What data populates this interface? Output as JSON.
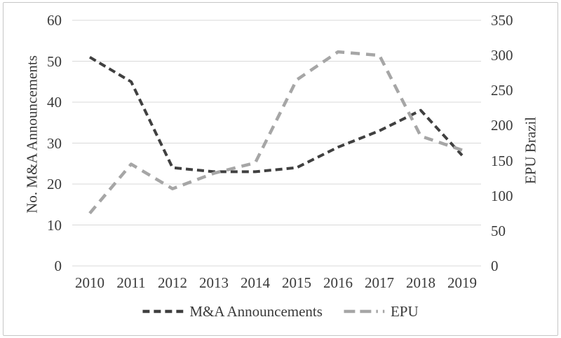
{
  "chart_data": {
    "type": "line",
    "title": "",
    "categories": [
      "2010",
      "2011",
      "2012",
      "2013",
      "2014",
      "2015",
      "2016",
      "2017",
      "2018",
      "2019"
    ],
    "series": [
      {
        "name": "M&A Announcements",
        "axis": "left",
        "color": "#404040",
        "line_style": "short-dash",
        "values": [
          51,
          45,
          24,
          23,
          23,
          24,
          29,
          33,
          38,
          27
        ]
      },
      {
        "name": "EPU",
        "axis": "right",
        "color": "#a6a6a6",
        "line_style": "long-dash-dot",
        "values": [
          75,
          145,
          110,
          132,
          147,
          265,
          305,
          300,
          185,
          165
        ]
      }
    ],
    "left_axis": {
      "label": "No. M&A Announcements",
      "min": 0,
      "max": 60,
      "ticks": [
        0,
        10,
        20,
        30,
        40,
        50,
        60
      ]
    },
    "right_axis": {
      "label": "EPU Brazil",
      "min": 0,
      "max": 350,
      "ticks": [
        0,
        50,
        100,
        150,
        200,
        250,
        300,
        350
      ]
    },
    "grid": "horizontal",
    "legend_position": "bottom"
  },
  "colors": {
    "grid": "#d9d9d9",
    "text": "#3a3a3a",
    "frame_border": "#c6c6c6",
    "background": "#ffffff"
  }
}
